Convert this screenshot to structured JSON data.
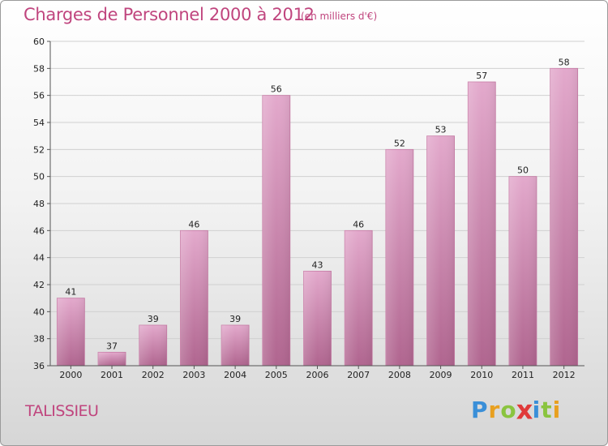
{
  "header": {
    "title": "Charges de Personnel 2000 à 2012",
    "subtitle": "(en milliers d'€)"
  },
  "footer": {
    "commune": "TALISSIEU",
    "logo_letters": [
      "P",
      "r",
      "o",
      "x",
      "i",
      "t",
      "i"
    ],
    "logo_colors": [
      "#3a8fd8",
      "#e8a020",
      "#8ac43f",
      "#e03a3a",
      "#3a8fd8",
      "#8ac43f",
      "#e8a020"
    ]
  },
  "chart_data": {
    "type": "bar",
    "categories": [
      "2000",
      "2001",
      "2002",
      "2003",
      "2004",
      "2005",
      "2006",
      "2007",
      "2008",
      "2009",
      "2010",
      "2011",
      "2012"
    ],
    "values": [
      41,
      37,
      39,
      46,
      39,
      56,
      43,
      46,
      52,
      53,
      57,
      50,
      58
    ],
    "data_labels": [
      "41",
      "37",
      "39",
      "46",
      "39",
      "56",
      "43",
      "46",
      "52",
      "53",
      "57",
      "50",
      "58"
    ],
    "yticks": [
      "36",
      "38",
      "40",
      "42",
      "44",
      "46",
      "48",
      "50",
      "52",
      "54",
      "56",
      "58",
      "60"
    ],
    "ylim": [
      36,
      60
    ],
    "grid": true,
    "colors": {
      "bar_top": "#e3a9cc",
      "bar_bottom": "#b0658f",
      "bar_edge": "#c77aa5"
    }
  }
}
